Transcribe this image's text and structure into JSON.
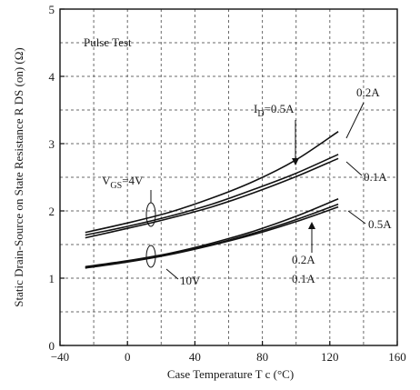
{
  "chart_data": {
    "type": "line",
    "title": "",
    "xlabel": "Case Temperature  T c  (°C)",
    "ylabel": "Static Drain-Source on State Resistance  R DS  (on) (Ω)",
    "xlim": [
      -40,
      160
    ],
    "ylim": [
      0,
      5
    ],
    "xticks": [
      -40,
      0,
      40,
      80,
      120,
      160
    ],
    "yticks": [
      0,
      1,
      2,
      3,
      4,
      5
    ],
    "xtick_labels": [
      "−40",
      "0",
      "40",
      "80",
      "120",
      "160"
    ],
    "ytick_labels": [
      "0",
      "1",
      "2",
      "3",
      "4",
      "5"
    ],
    "grid": true,
    "series": [
      {
        "x": [
          -25,
          0,
          25,
          50,
          75,
          100,
          125
        ],
        "y": [
          1.68,
          1.82,
          1.98,
          2.19,
          2.44,
          2.76,
          3.18
        ]
      },
      {
        "x": [
          -25,
          0,
          25,
          50,
          75,
          100,
          125
        ],
        "y": [
          1.64,
          1.77,
          1.92,
          2.1,
          2.32,
          2.56,
          2.84
        ]
      },
      {
        "x": [
          -25,
          0,
          25,
          50,
          75,
          100,
          125
        ],
        "y": [
          1.6,
          1.74,
          1.89,
          2.06,
          2.27,
          2.51,
          2.78
        ]
      },
      {
        "x": [
          -25,
          0,
          25,
          50,
          75,
          100,
          125
        ],
        "y": [
          1.17,
          1.26,
          1.37,
          1.52,
          1.7,
          1.92,
          2.18
        ]
      },
      {
        "x": [
          -25,
          0,
          25,
          50,
          75,
          100,
          125
        ],
        "y": [
          1.16,
          1.25,
          1.36,
          1.5,
          1.67,
          1.87,
          2.1
        ]
      },
      {
        "x": [
          -25,
          0,
          25,
          50,
          75,
          100,
          125
        ],
        "y": [
          1.15,
          1.24,
          1.35,
          1.49,
          1.65,
          1.84,
          2.06
        ]
      }
    ],
    "annotations": {
      "pulse_test": "Pulse Test",
      "id_label": "I",
      "id_sub": "D",
      "id_value": "=0.5A",
      "top_02": "0.2A",
      "top_01": "0.1A",
      "vgs_label": "V",
      "vgs_sub": "GS",
      "vgs_value": "=4V",
      "bot_05": "0.5A",
      "bot_02": "0.2A",
      "bot_01": "0.1A",
      "v10": "10V"
    }
  }
}
